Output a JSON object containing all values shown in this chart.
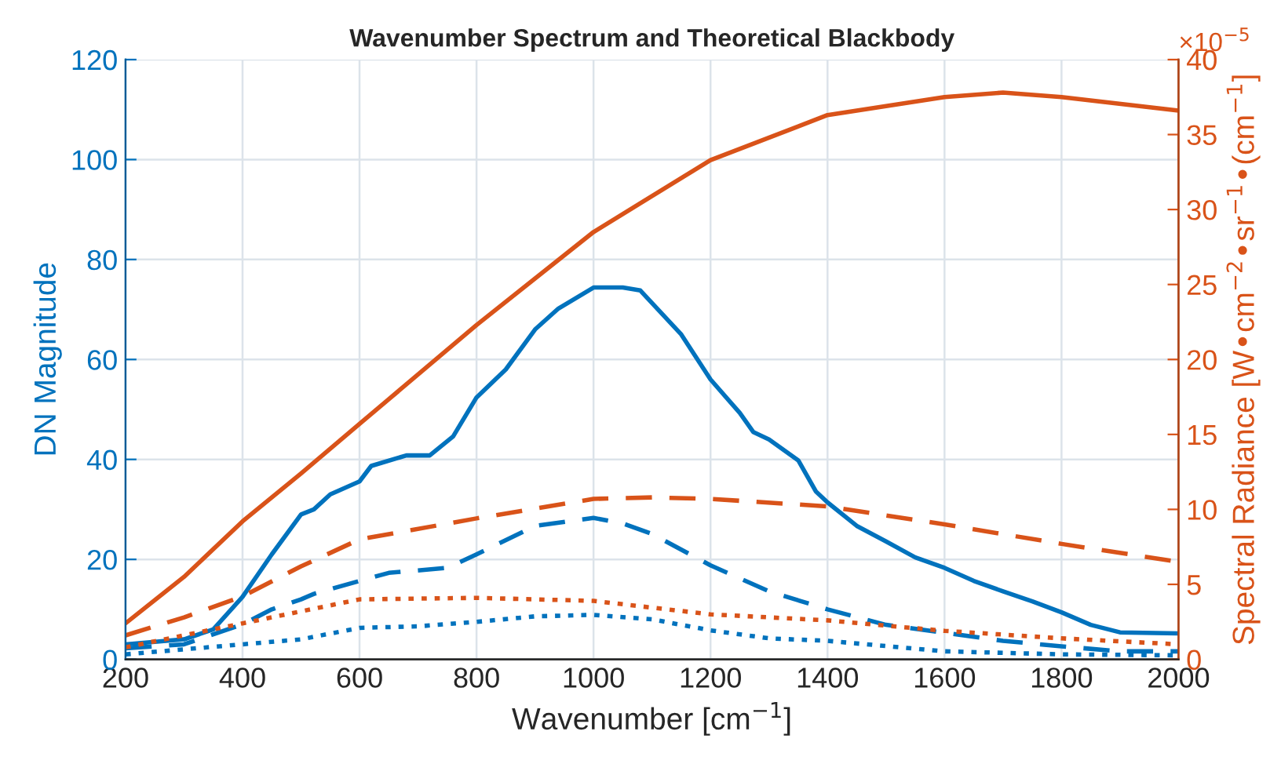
{
  "chart_data": {
    "type": "line",
    "title": "Wavenumber Spectrum and Theoretical Blackbody",
    "xlabel": "Wavenumber [cm$^{−1}$]",
    "ylabel": "DN Magnitude",
    "y2label": "Spectral Radiance [W•cm$^{−2}$•sr$^{−1}$•(cm$^{−1}$]",
    "annotations": [
      "×10$^{−5}$"
    ],
    "xlim": [
      200,
      2000
    ],
    "xticks": [
      200,
      400,
      600,
      800,
      1000,
      1200,
      1400,
      1600,
      1800,
      2000
    ],
    "ylim": [
      0,
      120
    ],
    "yticks": [
      0,
      20,
      40,
      60,
      80,
      100,
      120
    ],
    "y2lim": [
      0,
      40
    ],
    "y2ticks": [
      0,
      5,
      10,
      15,
      20,
      25,
      30,
      35,
      40
    ],
    "grid": true,
    "legend": false,
    "marker": "none",
    "series": [
      {
        "color": "#0072bd",
        "line_style": "solid",
        "x": [
          200,
          300,
          350,
          400,
          450,
          500,
          522,
          550,
          600,
          620,
          680,
          720,
          760,
          800,
          850,
          900,
          940,
          1000,
          1050,
          1080,
          1150,
          1200,
          1250,
          1273,
          1300,
          1350,
          1380,
          1400,
          1450,
          1500,
          1550,
          1600,
          1650,
          1700,
          1750,
          1800,
          1850,
          1900,
          2000
        ],
        "values": [
          3,
          4,
          6,
          12.5,
          21,
          29,
          30,
          33,
          35.6,
          38.7,
          40.8,
          40.8,
          44.6,
          52.4,
          58,
          66,
          70.2,
          74.4,
          74.4,
          73.8,
          65,
          56,
          49.3,
          45.5,
          44,
          39.8,
          33.6,
          31.4,
          26.7,
          23.6,
          20.4,
          18.3,
          15.7,
          13.6,
          11.6,
          9.4,
          6.9,
          5.4,
          5.2
        ]
      },
      {
        "color": "#0072bd",
        "line_style": "dashed",
        "x": [
          200,
          300,
          400,
          450,
          500,
          522,
          600,
          650,
          750,
          800,
          900,
          1000,
          1050,
          1100,
          1200,
          1300,
          1400,
          1500,
          1600,
          1700,
          1800,
          1900,
          2000
        ],
        "values": [
          2.2,
          3,
          7,
          10,
          12,
          13.1,
          15.7,
          17.3,
          18.3,
          21,
          26.7,
          28.3,
          27.2,
          25.1,
          18.8,
          13.6,
          10,
          6.9,
          5.3,
          3.7,
          2.6,
          1.6,
          1.6
        ]
      },
      {
        "color": "#0072bd",
        "line_style": "dotted",
        "x": [
          200,
          400,
          500,
          600,
          700,
          800,
          900,
          1000,
          1100,
          1200,
          1300,
          1400,
          1600,
          1800,
          2000
        ],
        "values": [
          1,
          3,
          4,
          6.3,
          6.6,
          7.5,
          8.6,
          8.9,
          8,
          5.8,
          4.2,
          3.7,
          1.6,
          1,
          0.8
        ]
      },
      {
        "color": "#d95319",
        "line_style": "solid",
        "axis": "y2",
        "x": [
          200,
          300,
          400,
          500,
          600,
          800,
          1000,
          1200,
          1400,
          1600,
          1700,
          1800,
          2000
        ],
        "values": [
          2.4,
          5.5,
          9.2,
          12.4,
          15.7,
          22.3,
          28.5,
          33.3,
          36.3,
          37.5,
          37.8,
          37.5,
          36.6
        ]
      },
      {
        "color": "#d95319",
        "line_style": "dashed",
        "axis": "y2",
        "x": [
          200,
          300,
          400,
          500,
          600,
          800,
          1000,
          1100,
          1200,
          1400,
          1600,
          1800,
          2000
        ],
        "values": [
          1.6,
          2.8,
          4.2,
          6.2,
          8,
          9.4,
          10.7,
          10.8,
          10.7,
          10.2,
          9,
          7.7,
          6.5
        ]
      },
      {
        "color": "#d95319",
        "line_style": "dotted",
        "axis": "y2",
        "x": [
          200,
          400,
          600,
          800,
          1000,
          1200,
          1400,
          1600,
          1800,
          2000
        ],
        "values": [
          0.8,
          2.4,
          4,
          4.1,
          3.9,
          3,
          2.6,
          1.9,
          1.4,
          1
        ]
      }
    ]
  }
}
